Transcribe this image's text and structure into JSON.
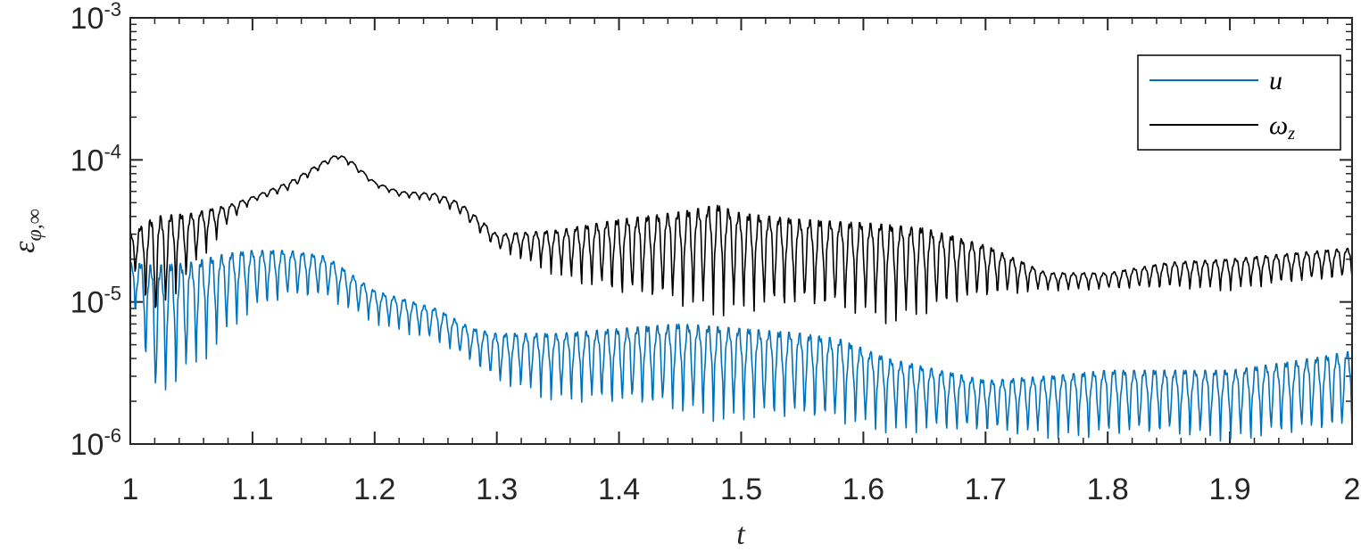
{
  "chart_data": {
    "type": "line",
    "title": "",
    "xlabel": "t",
    "ylabel": {
      "base": "ε",
      "subscript": "φ,∞"
    },
    "xlim": [
      1,
      2
    ],
    "ylim": [
      1e-06,
      0.001
    ],
    "yscale": "log",
    "grid": false,
    "legend_position": "top-right",
    "x_ticks": [
      "1",
      "1.1",
      "1.2",
      "1.3",
      "1.4",
      "1.5",
      "1.6",
      "1.7",
      "1.8",
      "1.9",
      "2"
    ],
    "y_ticks": [
      {
        "base": "10",
        "exp": "-6"
      },
      {
        "base": "10",
        "exp": "-5"
      },
      {
        "base": "10",
        "exp": "-4"
      },
      {
        "base": "10",
        "exp": "-3"
      }
    ],
    "series": [
      {
        "name": "u",
        "color": "#0072BD",
        "envelope": {
          "t": [
            1.0,
            1.02,
            1.05,
            1.08,
            1.1,
            1.13,
            1.16,
            1.2,
            1.25,
            1.28,
            1.3,
            1.35,
            1.4,
            1.45,
            1.5,
            1.55,
            1.58,
            1.62,
            1.65,
            1.7,
            1.75,
            1.8,
            1.85,
            1.9,
            1.95,
            2.0
          ],
          "high": [
            1.9e-05,
            1.8e-05,
            1.9e-05,
            2.2e-05,
            2.3e-05,
            2.3e-05,
            2.1e-05,
            1.2e-05,
            9e-06,
            6.5e-06,
            6e-06,
            6e-06,
            6.5e-06,
            7e-06,
            6.5e-06,
            6e-06,
            5.5e-06,
            4e-06,
            3.5e-06,
            2.8e-06,
            3e-06,
            3.3e-06,
            3.3e-06,
            3.3e-06,
            3.8e-06,
            4.5e-06
          ],
          "low": [
            1.2e-05,
            1.6e-06,
            3e-06,
            6e-06,
            8e-06,
            1e-05,
            1e-05,
            7e-06,
            5e-06,
            3.5e-06,
            2.5e-06,
            2e-06,
            1.7e-06,
            1.5e-06,
            1.4e-06,
            1.3e-06,
            1.25e-06,
            1.2e-06,
            1.15e-06,
            1.1e-06,
            1.1e-06,
            1.05e-06,
            1.05e-06,
            1.05e-06,
            1.05e-06,
            1.1e-06
          ]
        }
      },
      {
        "name": "ω_z",
        "label_base": "ω",
        "label_sub": "z",
        "color": "#000000",
        "envelope": {
          "t": [
            1.0,
            1.02,
            1.05,
            1.08,
            1.1,
            1.13,
            1.16,
            1.17,
            1.18,
            1.2,
            1.22,
            1.25,
            1.27,
            1.3,
            1.35,
            1.4,
            1.45,
            1.48,
            1.5,
            1.55,
            1.6,
            1.62,
            1.65,
            1.7,
            1.75,
            1.8,
            1.85,
            1.9,
            1.95,
            2.0
          ],
          "high": [
            3e-05,
            4e-05,
            4.2e-05,
            4.8e-05,
            5.5e-05,
            7e-05,
            0.0001,
            0.00011,
            0.0001,
            7e-05,
            6e-05,
            5.8e-05,
            5e-05,
            3e-05,
            3.2e-05,
            3.8e-05,
            4.3e-05,
            4.8e-05,
            4.2e-05,
            3.8e-05,
            3.6e-05,
            3.5e-05,
            3.3e-05,
            2.5e-05,
            1.6e-05,
            1.6e-05,
            1.9e-05,
            2e-05,
            2.2e-05,
            2.4e-05
          ],
          "low": [
            1.8e-05,
            6e-06,
            1.6e-05,
            3.5e-05,
            5e-05,
            6e-05,
            9e-05,
            0.0001,
            9e-05,
            6.5e-05,
            5.5e-05,
            5e-05,
            4e-05,
            2.3e-05,
            1.5e-05,
            1e-05,
            8.5e-06,
            8e-06,
            8e-06,
            8e-06,
            7.5e-06,
            7e-06,
            7.5e-06,
            1e-05,
            1.2e-05,
            1.2e-05,
            1.2e-05,
            1.2e-05,
            1.3e-05,
            1.4e-05
          ]
        }
      }
    ]
  }
}
